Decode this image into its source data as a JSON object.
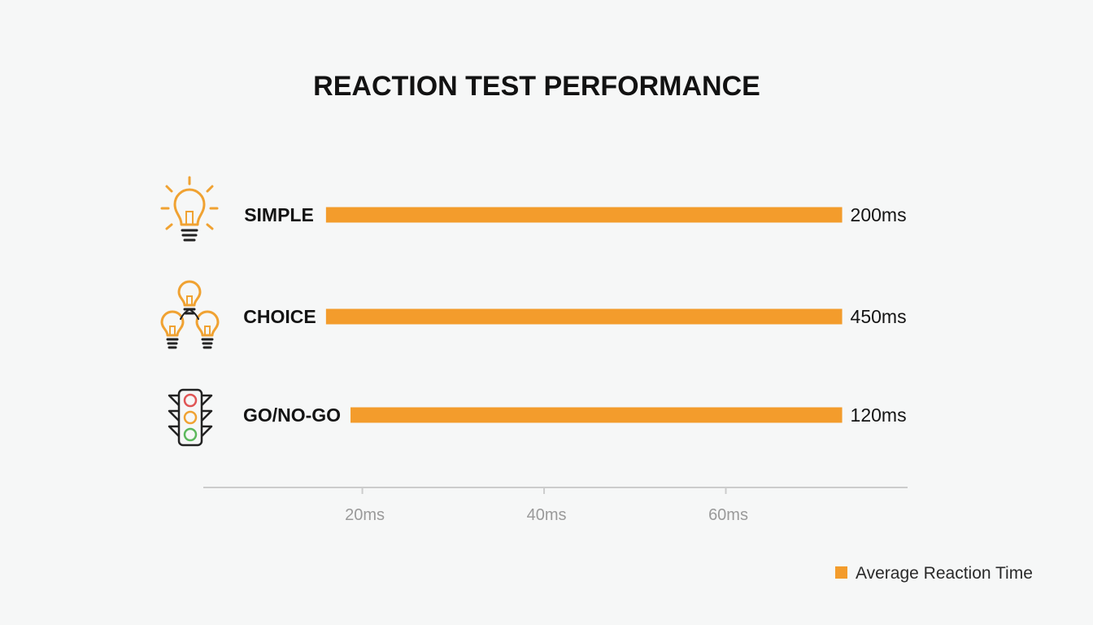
{
  "chart_data": {
    "type": "bar",
    "orientation": "horizontal",
    "title": "REACTION TEST PERFORMANCE",
    "categories": [
      "SIMPLE",
      "CHOICE",
      "GO/NO-GO"
    ],
    "category_icons": [
      "lightbulb-icon",
      "three-lightbulbs-icon",
      "traffic-light-icon"
    ],
    "series": [
      {
        "name": "Average Reaction Time",
        "values": [
          200,
          450,
          120
        ],
        "value_labels": [
          "200ms",
          "450ms",
          "120ms"
        ],
        "color": "#f39c2c"
      }
    ],
    "x_ticks": [
      20,
      40,
      60
    ],
    "x_tick_labels": [
      "20ms",
      "40ms",
      "60ms"
    ],
    "bar_starts": [
      16,
      16,
      18.7
    ],
    "bar_ends": [
      72.8,
      72.8,
      72.8
    ],
    "xlim": [
      2.5,
      80
    ],
    "grid": false,
    "legend_position": "bottom-right",
    "colors": {
      "bar": "#f39c2c",
      "icon": "#f0a232",
      "axis": "#cccccc",
      "tick_text": "#9a9a9a",
      "traffic_red": "#e05555",
      "traffic_yellow": "#f0a232",
      "traffic_green": "#5cb85c"
    }
  }
}
